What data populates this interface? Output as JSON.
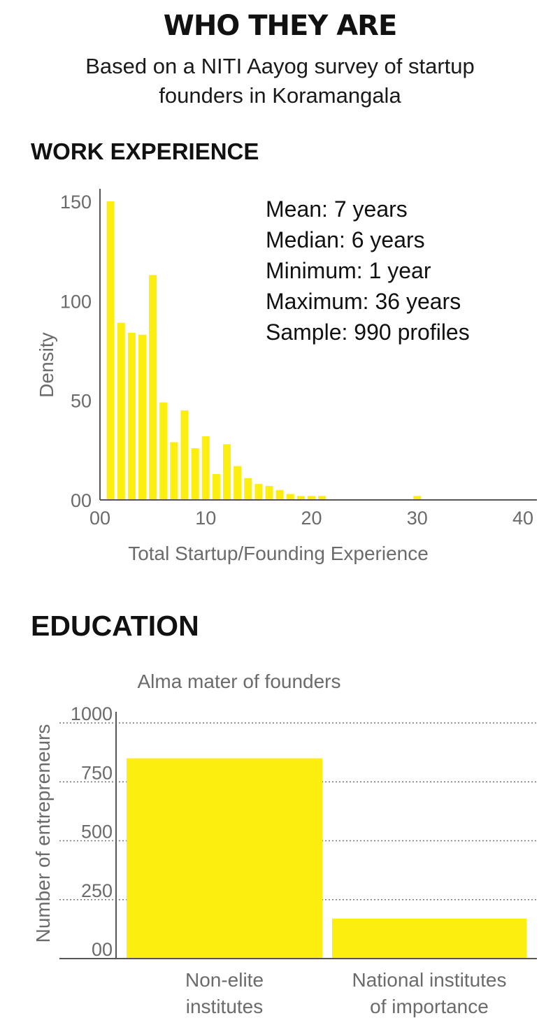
{
  "header": {
    "title": "WHO THEY ARE",
    "subtitle_line1": "Based on a NITI Aayog survey of startup",
    "subtitle_line2": "founders in Koramangala"
  },
  "colors": {
    "bar": "#fcee0f",
    "axis": "#555555",
    "text": "#1a1a1a",
    "tick": "#6b6b6b"
  },
  "chart_data": [
    {
      "type": "bar",
      "section": "WORK EXPERIENCE",
      "xlabel": "Total Startup/Founding Experience",
      "ylabel": "Density",
      "xlim": [
        0,
        40
      ],
      "ylim": [
        0,
        150
      ],
      "x_ticks": [
        "00",
        "10",
        "20",
        "30",
        "40"
      ],
      "y_ticks": [
        "00",
        "50",
        "100",
        "150"
      ],
      "grid": false,
      "x": [
        1,
        2,
        3,
        4,
        5,
        6,
        7,
        8,
        9,
        10,
        11,
        12,
        13,
        14,
        15,
        16,
        17,
        18,
        19,
        20,
        21,
        22,
        23,
        24,
        25,
        30
      ],
      "values": [
        150,
        89,
        84,
        83,
        113,
        49,
        29,
        45,
        26,
        32,
        13,
        28,
        17,
        11,
        8,
        7,
        5,
        3,
        2,
        2,
        2,
        0,
        0,
        0,
        0,
        2
      ],
      "stats": [
        "Mean: 7 years",
        "Median: 6 years",
        "Minimum: 1 year",
        "Maximum: 36 years",
        "Sample: 990 profiles"
      ]
    },
    {
      "type": "bar",
      "section": "EDUCATION",
      "title": "Alma mater of founders",
      "ylabel": "Number of entrepreneurs",
      "ylim": [
        0,
        1000
      ],
      "y_ticks": [
        "00",
        "250",
        "500",
        "750",
        "1000"
      ],
      "grid": true,
      "categories": [
        [
          "Non-elite",
          "institutes"
        ],
        [
          "National institutes",
          "of importance"
        ]
      ],
      "values": [
        850,
        170
      ]
    }
  ]
}
